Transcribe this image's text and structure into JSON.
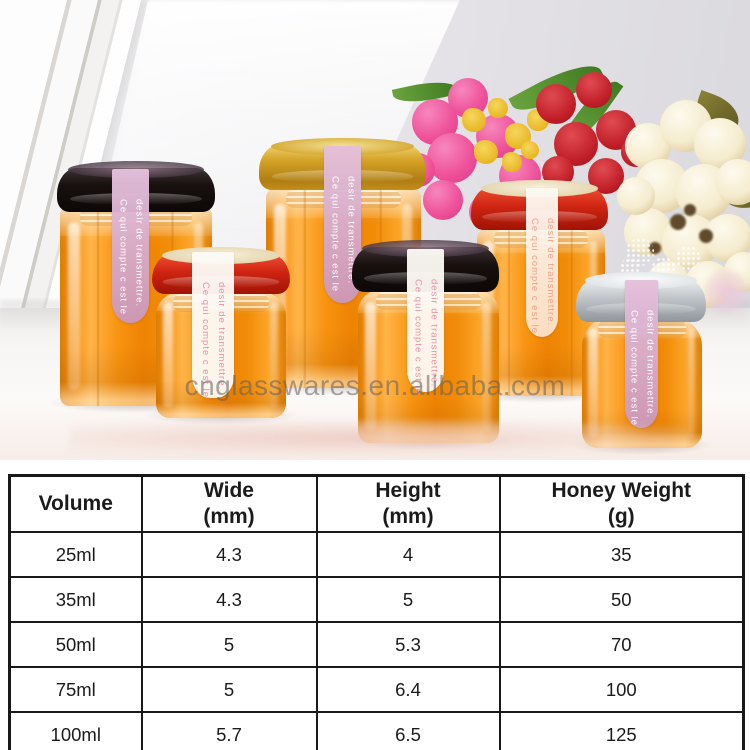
{
  "photo": {
    "watermark": "cnglasswares.en.alibaba.com",
    "jar_label": {
      "line1": "Ce qui compte c est le",
      "line2": "desir de transmettre."
    },
    "jars": [
      {
        "id": "honey-jar-left-black-lid",
        "lid": "black",
        "lid_color": "#1c1410",
        "label_variant": "pink"
      },
      {
        "id": "honey-jar-small-red-lid",
        "lid": "red",
        "lid_color": "#c9200f",
        "label_variant": "white"
      },
      {
        "id": "honey-jar-tall-gold-lid",
        "lid": "gold",
        "lid_color": "#c79420",
        "label_variant": "pink"
      },
      {
        "id": "honey-jar-middle-black-lid",
        "lid": "black",
        "lid_color": "#1c1410",
        "label_variant": "white"
      },
      {
        "id": "honey-jar-back-red-lid",
        "lid": "red",
        "lid_color": "#c9200f",
        "label_variant": "cream"
      },
      {
        "id": "honey-jar-small-silver-lid",
        "lid": "silver",
        "lid_color": "#b9bdc1",
        "label_variant": "pink"
      }
    ],
    "colors": {
      "honey": "#f6940f",
      "label_pink": "#d0a6c8",
      "label_white": "#faf6f0",
      "wall": "#e6e4e8"
    }
  },
  "table": {
    "border_color": "#191919",
    "headers": [
      {
        "line1": "Volume",
        "line2": ""
      },
      {
        "line1": "Wide",
        "line2": "(mm)"
      },
      {
        "line1": "Height",
        "line2": "(mm)"
      },
      {
        "line1": "Honey Weight",
        "line2": "(g)"
      }
    ],
    "rows": [
      [
        "25ml",
        "4.3",
        "4",
        "35"
      ],
      [
        "35ml",
        "4.3",
        "5",
        "50"
      ],
      [
        "50ml",
        "5",
        "5.3",
        "70"
      ],
      [
        "75ml",
        "5",
        "6.4",
        "100"
      ],
      [
        "100ml",
        "5.7",
        "6.5",
        "125"
      ]
    ]
  }
}
